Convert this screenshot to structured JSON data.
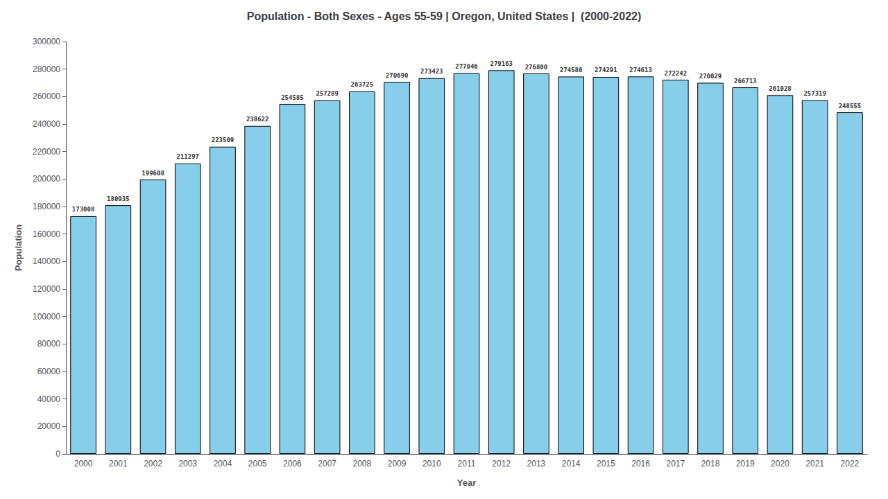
{
  "chart_data": {
    "type": "bar",
    "title": "Population - Both Sexes - Ages 55-59 | Oregon, United States |  (2000-2022)",
    "x_label": "Year",
    "y_label": "Population",
    "categories": [
      "2000",
      "2001",
      "2002",
      "2003",
      "2004",
      "2005",
      "2006",
      "2007",
      "2008",
      "2009",
      "2010",
      "2011",
      "2012",
      "2013",
      "2014",
      "2015",
      "2016",
      "2017",
      "2018",
      "2019",
      "2020",
      "2021",
      "2022"
    ],
    "values": [
      173008,
      180935,
      199608,
      211297,
      223509,
      238622,
      254585,
      257289,
      263725,
      270690,
      273423,
      277046,
      279163,
      276800,
      274580,
      274291,
      274613,
      272242,
      270029,
      266713,
      261028,
      257319,
      248555
    ],
    "color": "#87CEEB",
    "ylim": [
      0,
      300000
    ],
    "yticks": [
      0,
      20000,
      40000,
      60000,
      80000,
      100000,
      120000,
      140000,
      160000,
      180000,
      200000,
      220000,
      240000,
      260000,
      280000,
      300000
    ],
    "grid": false,
    "data_labels": true
  }
}
